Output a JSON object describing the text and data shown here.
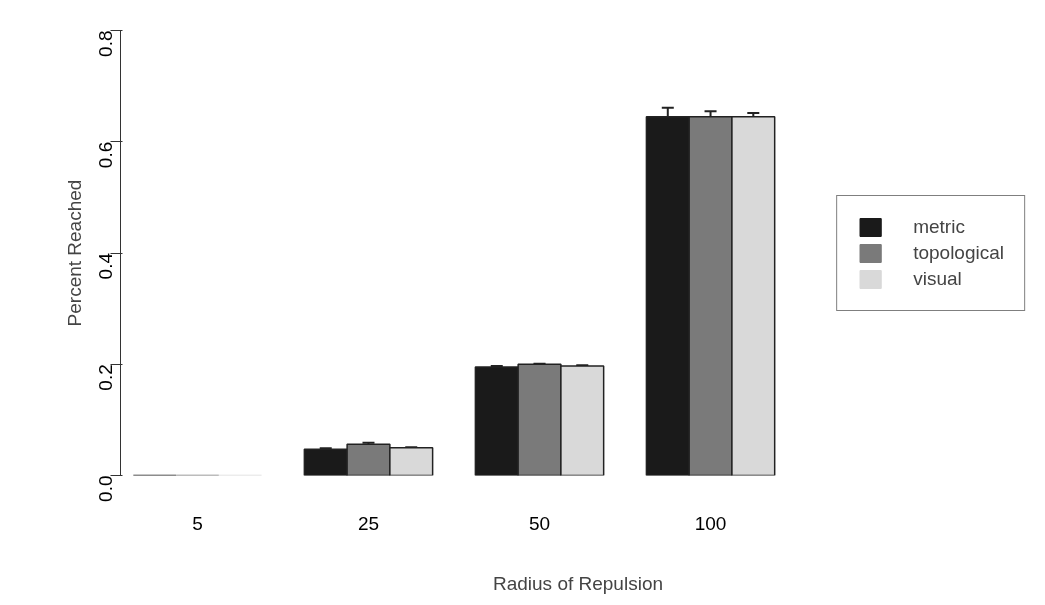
{
  "chart_data": {
    "type": "bar",
    "xlabel": "Radius of Repulsion",
    "ylabel": "Percent Reached",
    "categories": [
      "5",
      "25",
      "50",
      "100"
    ],
    "series": [
      {
        "name": "metric",
        "color": "#1a1a1a",
        "values": [
          0,
          0.047,
          0.195,
          0.645
        ],
        "errors": [
          null,
          0.002,
          0.002,
          0.016
        ]
      },
      {
        "name": "topological",
        "color": "#7a7a7a",
        "values": [
          0,
          0.056,
          0.2,
          0.645
        ],
        "errors": [
          null,
          0.003,
          0.001,
          0.01
        ]
      },
      {
        "name": "visual",
        "color": "#d9d9d9",
        "values": [
          0,
          0.05,
          0.197,
          0.645
        ],
        "errors": [
          null,
          0.001,
          0.001,
          0.0065
        ]
      }
    ],
    "ylim": [
      0,
      0.8
    ],
    "yticks": [
      {
        "value": 0,
        "label": "0.0"
      },
      0.2,
      0.4,
      0.6,
      0.8
    ],
    "grid": false,
    "legend": "right"
  }
}
